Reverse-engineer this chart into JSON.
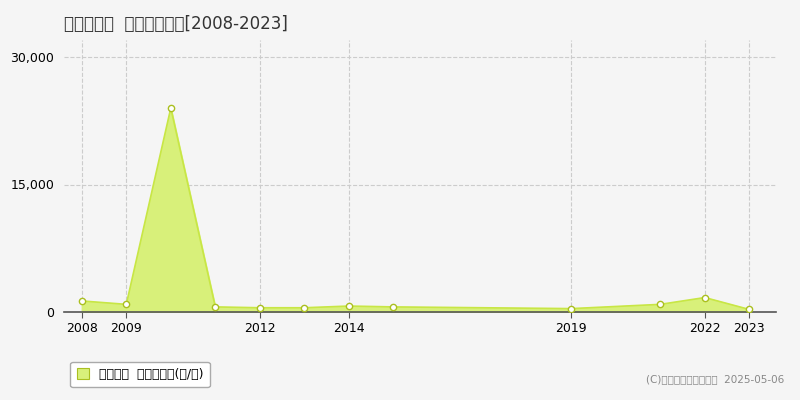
{
  "title": "石巻市成田  農地価格推移[2008-2023]",
  "years": [
    2008,
    2009,
    2010,
    2011,
    2012,
    2013,
    2014,
    2015,
    2019,
    2021,
    2022,
    2023
  ],
  "values": [
    1300,
    900,
    24000,
    600,
    500,
    500,
    700,
    600,
    400,
    900,
    1700,
    300
  ],
  "line_color": "#c8e645",
  "fill_color": "#d8f07a",
  "marker_color": "#ffffff",
  "marker_edge_color": "#aabf20",
  "grid_color": "#cccccc",
  "background_color": "#f5f5f5",
  "plot_bg_color": "#f5f5f5",
  "legend_label": "農地価格  平均坪単価(円/坪)",
  "copyright_text": "(C)土地価格ドットコム  2025-05-06",
  "yticks": [
    0,
    15000,
    30000
  ],
  "xticks": [
    2008,
    2009,
    2012,
    2014,
    2019,
    2022,
    2023
  ],
  "ylim": [
    0,
    32000
  ],
  "xlim": [
    2007.6,
    2023.6
  ]
}
